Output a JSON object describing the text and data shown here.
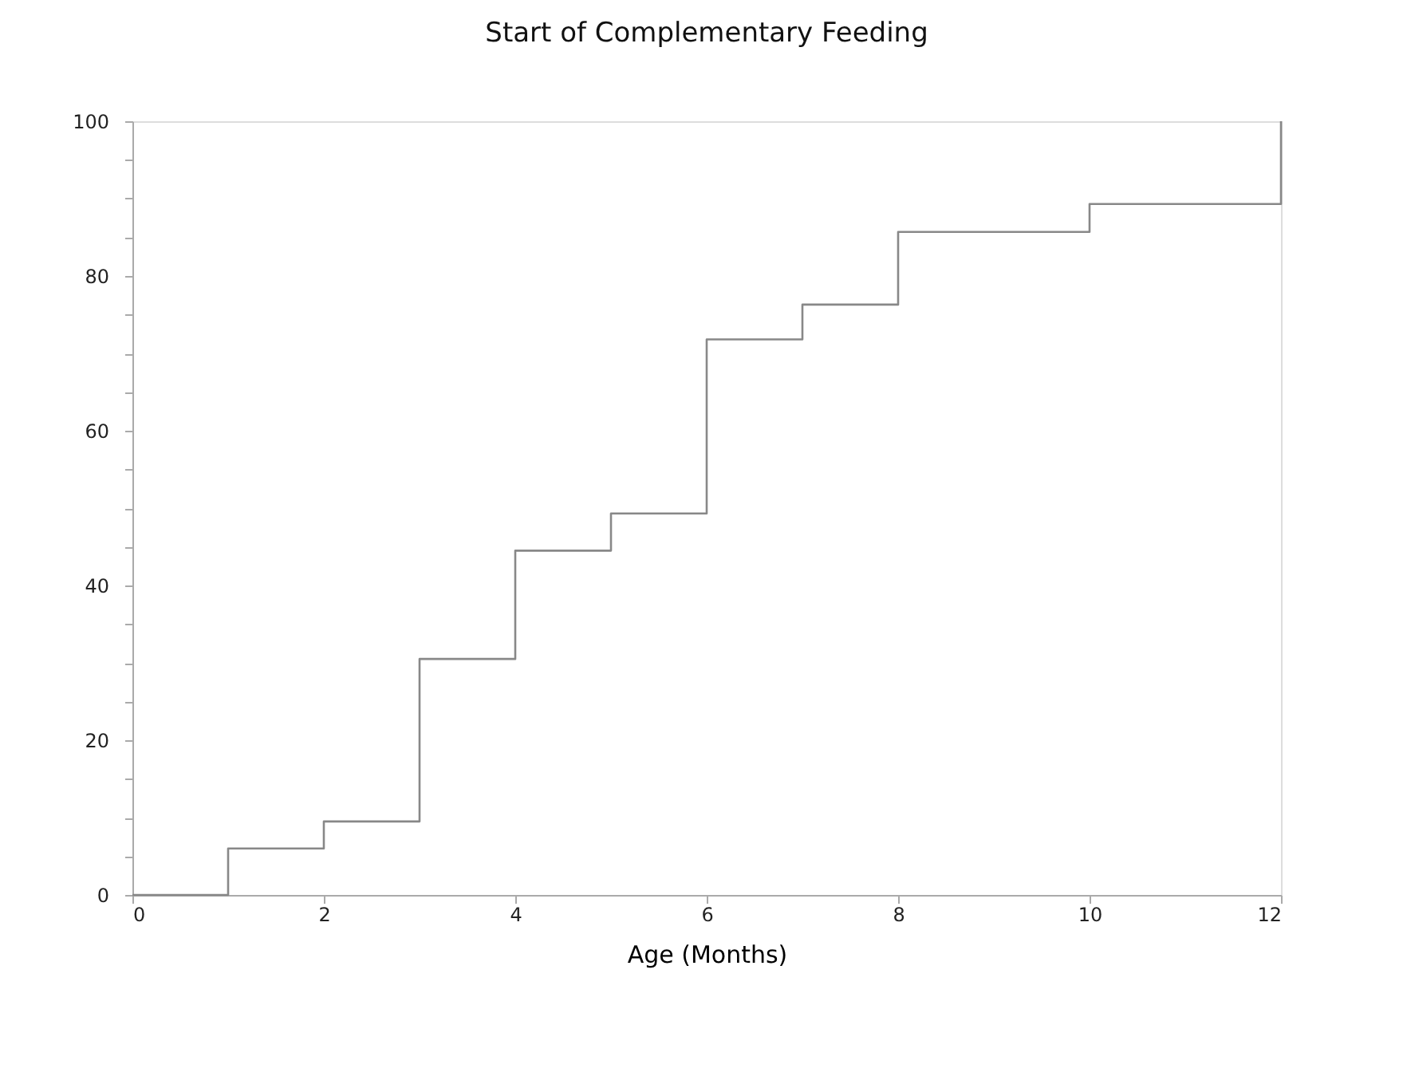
{
  "chart_data": {
    "type": "step",
    "title": "Start of Complementary Feeding",
    "xlabel": "Age (Months)",
    "x": [
      0,
      1,
      2,
      3,
      4,
      5,
      6,
      7,
      8,
      10,
      12
    ],
    "series": [
      {
        "color": "#888888",
        "values": [
          0,
          6,
          9.5,
          30.5,
          44.5,
          49.3,
          71.8,
          76.3,
          85.7,
          89.3,
          100
        ]
      }
    ],
    "xlim": [
      0,
      12
    ],
    "xticks": [
      0,
      2,
      4,
      6,
      8,
      10,
      12
    ],
    "ylim": [
      0,
      100
    ],
    "yticks": [
      0,
      {
        "value": 5,
        "label": null
      },
      {
        "value": 10,
        "label": null
      },
      {
        "value": 15,
        "label": null
      },
      20,
      {
        "value": 25,
        "label": null
      },
      {
        "value": 30,
        "label": null
      },
      {
        "value": 35,
        "label": null
      },
      40,
      {
        "value": 45,
        "label": null
      },
      {
        "value": 50,
        "label": null
      },
      {
        "value": 55,
        "label": null
      },
      60,
      {
        "value": 65,
        "label": null
      },
      {
        "value": 70,
        "label": null
      },
      {
        "value": 75,
        "label": null
      },
      80,
      {
        "value": 85,
        "label": null
      },
      {
        "value": 90,
        "label": null
      },
      {
        "value": 95,
        "label": null
      },
      100
    ],
    "grid": false,
    "legend": false,
    "marker": "none",
    "line_style": "solid"
  }
}
